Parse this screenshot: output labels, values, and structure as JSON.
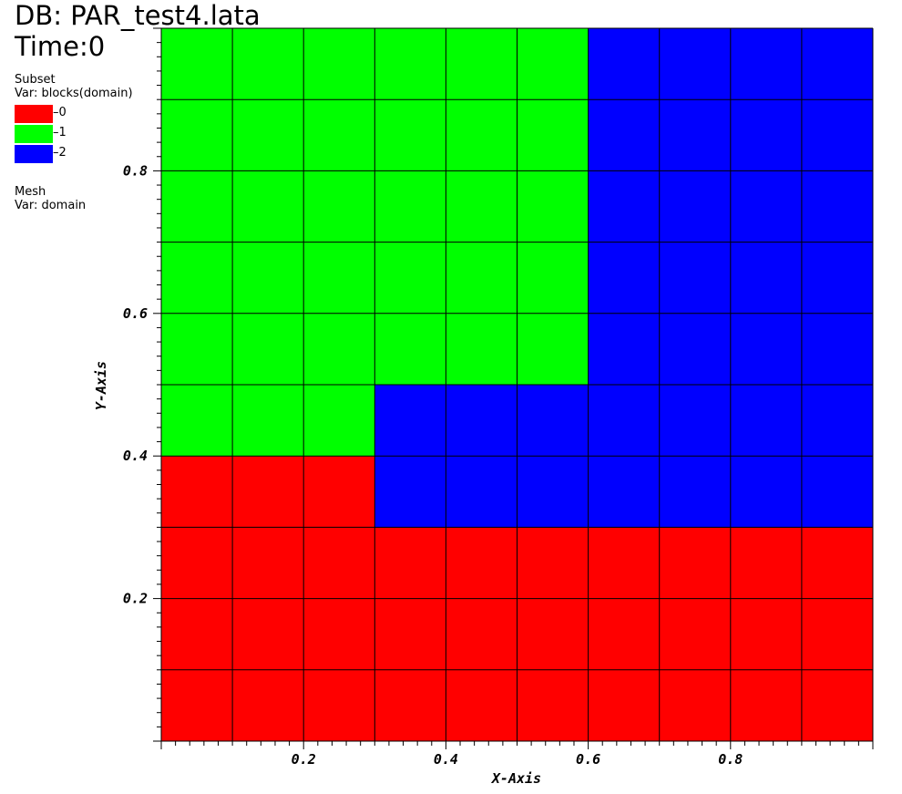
{
  "header": {
    "db_title": "DB: PAR_test4.lata",
    "time_label": "Time:0"
  },
  "legend": {
    "subset_title": "Subset",
    "subset_var": "Var: blocks(domain)",
    "entries": [
      {
        "label": "0",
        "color": "#ff0000"
      },
      {
        "label": "1",
        "color": "#00ff00"
      },
      {
        "label": "2",
        "color": "#0000ff"
      }
    ],
    "mesh_title": "Mesh",
    "mesh_var": "Var: domain"
  },
  "chart_data": {
    "type": "heatmap",
    "title": "",
    "xlabel": "X-Axis",
    "ylabel": "Y-Axis",
    "xlim": [
      0,
      1
    ],
    "ylim": [
      0,
      1
    ],
    "x_ticks": [
      "0.2",
      "0.4",
      "0.6",
      "0.8"
    ],
    "y_ticks": [
      "0.2",
      "0.4",
      "0.6",
      "0.8"
    ],
    "grid": true,
    "cell_size": 0.1,
    "regions": [
      {
        "subset": "0",
        "color": "#ff0000",
        "cells": "rows 0-2 all columns; row 3 columns 0-2"
      },
      {
        "subset": "1",
        "color": "#00ff00",
        "cells": "row 4 columns 0-2; rows 5-9 columns 0-5"
      },
      {
        "subset": "2",
        "color": "#0000ff",
        "cells": "row 3 columns 3-9; row 4 columns 3-9; rows 5-9 columns 6-9"
      }
    ],
    "grid_values": [
      [
        0,
        0,
        0,
        0,
        0,
        0,
        0,
        0,
        0,
        0
      ],
      [
        0,
        0,
        0,
        0,
        0,
        0,
        0,
        0,
        0,
        0
      ],
      [
        0,
        0,
        0,
        0,
        0,
        0,
        0,
        0,
        0,
        0
      ],
      [
        0,
        0,
        0,
        2,
        2,
        2,
        2,
        2,
        2,
        2
      ],
      [
        1,
        1,
        1,
        2,
        2,
        2,
        2,
        2,
        2,
        2
      ],
      [
        1,
        1,
        1,
        1,
        1,
        1,
        2,
        2,
        2,
        2
      ],
      [
        1,
        1,
        1,
        1,
        1,
        1,
        2,
        2,
        2,
        2
      ],
      [
        1,
        1,
        1,
        1,
        1,
        1,
        2,
        2,
        2,
        2
      ],
      [
        1,
        1,
        1,
        1,
        1,
        1,
        2,
        2,
        2,
        2
      ],
      [
        1,
        1,
        1,
        1,
        1,
        1,
        2,
        2,
        2,
        2
      ]
    ],
    "colors": {
      "0": "#ff0000",
      "1": "#00ff00",
      "2": "#0000ff"
    }
  }
}
